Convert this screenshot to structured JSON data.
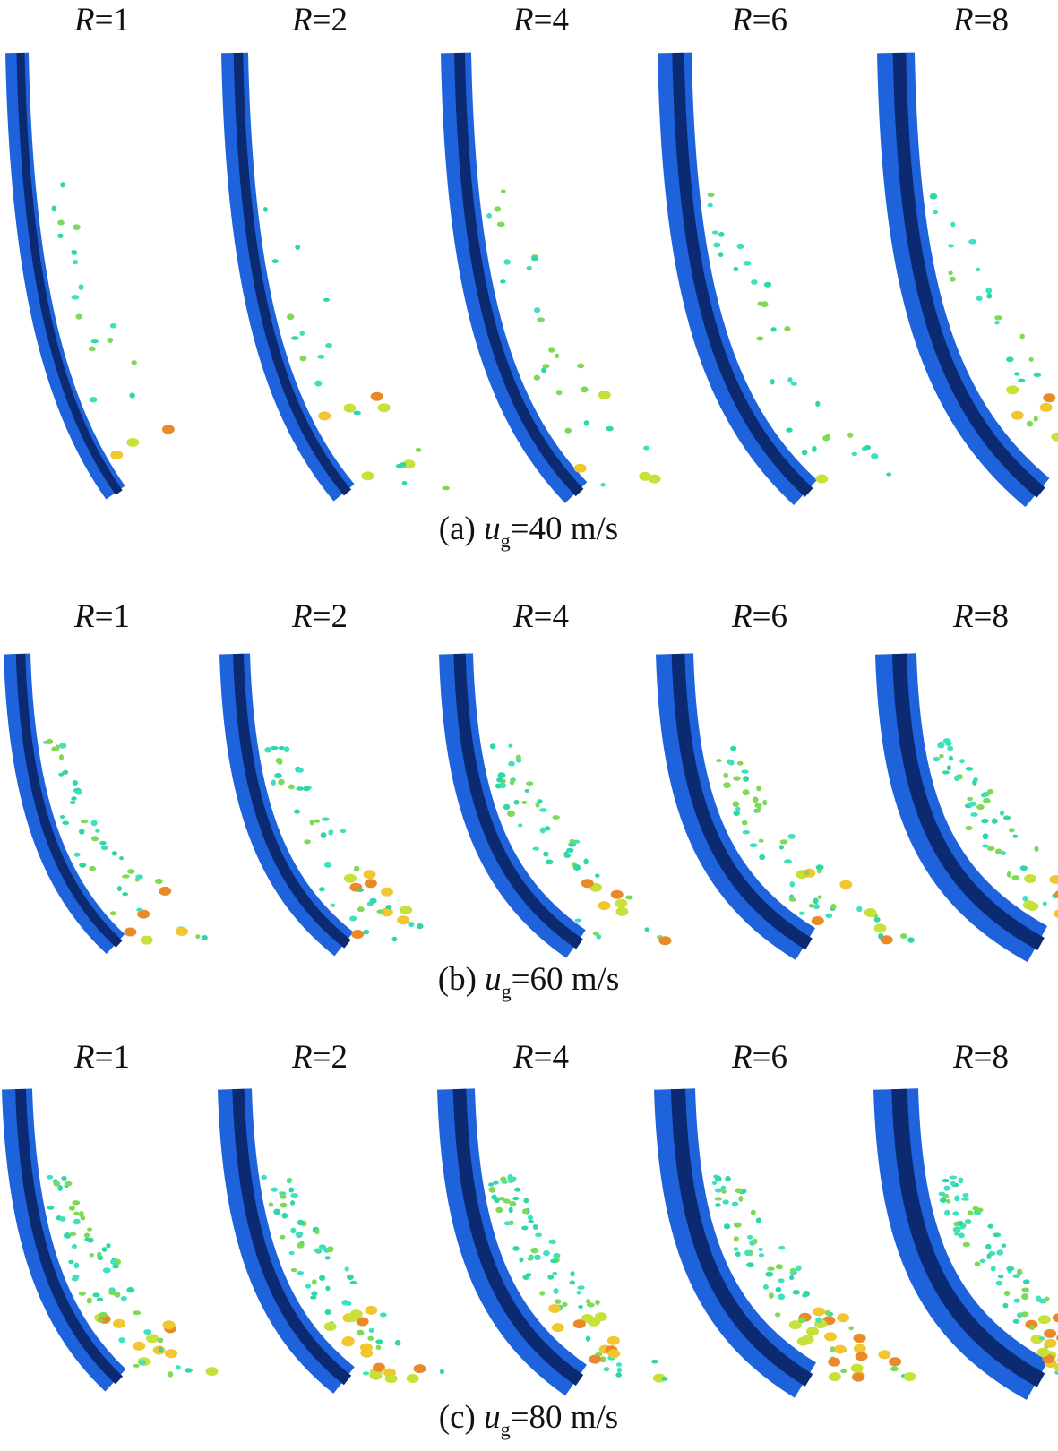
{
  "figure": {
    "rows": [
      {
        "caption": {
          "prefix": "(a) ",
          "var": "u",
          "sub": "g",
          "rest": "=40 m/s"
        },
        "panels": [
          {
            "var": "R",
            "value": "=1"
          },
          {
            "var": "R",
            "value": "=2"
          },
          {
            "var": "R",
            "value": "=4"
          },
          {
            "var": "R",
            "value": "=6"
          },
          {
            "var": "R",
            "value": "=8"
          }
        ]
      },
      {
        "caption": {
          "prefix": "(b) ",
          "var": "u",
          "sub": "g",
          "rest": "=60 m/s"
        },
        "panels": [
          {
            "var": "R",
            "value": "=1"
          },
          {
            "var": "R",
            "value": "=2"
          },
          {
            "var": "R",
            "value": "=4"
          },
          {
            "var": "R",
            "value": "=6"
          },
          {
            "var": "R",
            "value": "=8"
          }
        ]
      },
      {
        "caption": {
          "prefix": "(c) ",
          "var": "u",
          "sub": "g",
          "rest": "=80 m/s"
        },
        "panels": [
          {
            "var": "R",
            "value": "=1"
          },
          {
            "var": "R",
            "value": "=2"
          },
          {
            "var": "R",
            "value": "=4"
          },
          {
            "var": "R",
            "value": "=6"
          },
          {
            "var": "R",
            "value": "=8"
          }
        ]
      }
    ]
  }
}
